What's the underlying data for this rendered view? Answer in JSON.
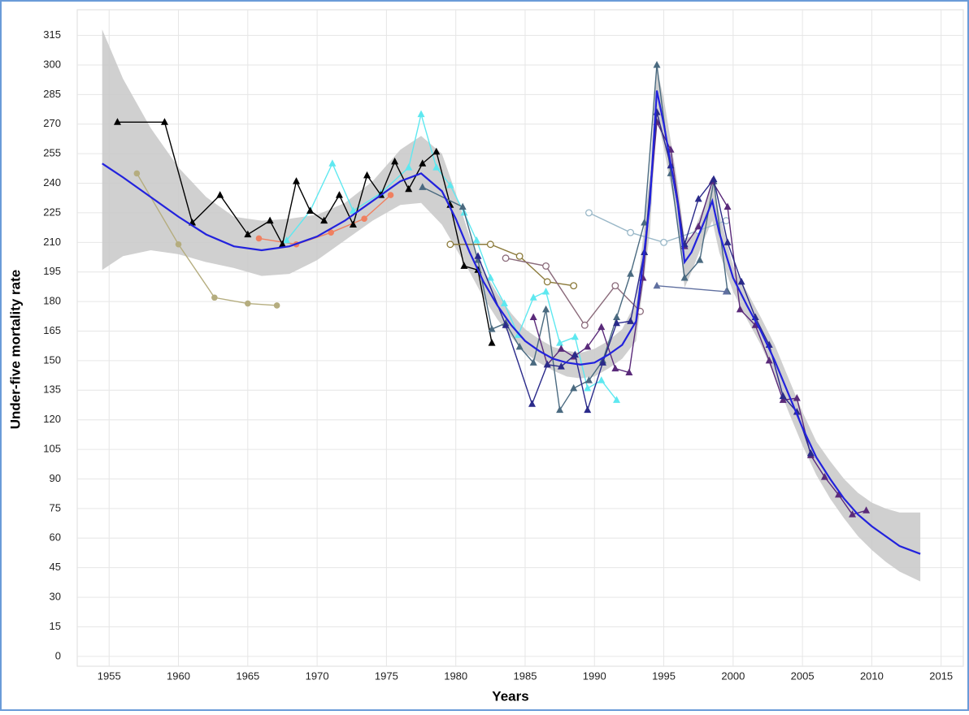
{
  "chart_data": {
    "type": "line",
    "x_label": "Years",
    "y_label": "Under-five mortality rate",
    "xlim": [
      1952.7,
      2016.6
    ],
    "ylim": [
      -5,
      328
    ],
    "xticks": [
      1955,
      1960,
      1965,
      1970,
      1975,
      1980,
      1985,
      1990,
      1995,
      2000,
      2005,
      2010,
      2015
    ],
    "yticks": [
      0,
      15,
      30,
      45,
      60,
      75,
      90,
      105,
      120,
      135,
      150,
      165,
      180,
      195,
      210,
      225,
      240,
      255,
      270,
      285,
      300,
      315
    ],
    "grid": true,
    "band": {
      "color": "#c8c8c8",
      "x": [
        1954.5,
        1956,
        1958,
        1960,
        1962,
        1964,
        1966,
        1968,
        1970,
        1972,
        1974,
        1976,
        1977.5,
        1979,
        1980,
        1981,
        1982,
        1983,
        1984,
        1985,
        1986,
        1987,
        1988,
        1989,
        1990,
        1991,
        1992,
        1993,
        1994,
        1994.5,
        1995,
        1996,
        1996.5,
        1997,
        1998,
        1998.5,
        1999,
        2000,
        2001,
        2002,
        2003,
        2004,
        2005,
        2006,
        2007,
        2008,
        2009,
        2010,
        2011,
        2012,
        2013.5
      ],
      "upper": [
        318,
        293,
        268,
        248,
        233,
        223,
        221,
        222,
        224,
        230,
        241,
        257,
        264,
        255,
        235,
        213,
        196,
        184,
        174,
        166,
        161,
        157,
        155,
        154,
        156,
        160,
        166,
        180,
        245,
        298,
        283,
        240,
        212,
        213,
        230,
        241,
        225,
        198,
        185,
        172,
        158,
        141,
        124,
        109,
        99,
        90,
        83,
        78,
        75,
        73,
        73
      ],
      "lower": [
        196,
        203,
        206,
        204,
        200,
        197,
        193,
        194,
        201,
        211,
        221,
        229,
        230,
        219,
        207,
        195,
        182,
        171,
        162,
        154,
        149,
        145,
        142,
        141,
        142,
        146,
        151,
        160,
        215,
        274,
        258,
        220,
        187,
        195,
        213,
        221,
        205,
        185,
        171,
        158,
        142,
        124,
        107,
        92,
        80,
        70,
        61,
        54,
        48,
        43,
        38
      ]
    },
    "fit": {
      "color": "#2222dd",
      "x": [
        1954.5,
        1956,
        1958,
        1960,
        1962,
        1964,
        1966,
        1968,
        1970,
        1972,
        1974,
        1976,
        1977.5,
        1979,
        1980,
        1981,
        1982,
        1983,
        1984,
        1985,
        1986,
        1987,
        1988,
        1989,
        1990,
        1991,
        1992,
        1993,
        1994,
        1994.5,
        1995,
        1996,
        1996.5,
        1997,
        1998,
        1998.5,
        1999,
        2000,
        2001,
        2002,
        2003,
        2004,
        2005,
        2006,
        2007,
        2008,
        2009,
        2010,
        2011,
        2012,
        2013.5
      ],
      "values": [
        250,
        243,
        233,
        223,
        214,
        208,
        206,
        208,
        213,
        221,
        231,
        241,
        245,
        236,
        222,
        205,
        190,
        178,
        168,
        160,
        155,
        151,
        149,
        148,
        149,
        153,
        158,
        170,
        230,
        287,
        270,
        230,
        200,
        205,
        222,
        231,
        215,
        192,
        178,
        165,
        150,
        133,
        116,
        101,
        90,
        80,
        72,
        66,
        61,
        56,
        52
      ]
    },
    "series": [
      {
        "color": "#b5ad7f",
        "marker": "circle",
        "x": [
          1957,
          1960,
          1962.6,
          1965,
          1967.1
        ],
        "values": [
          245,
          209,
          182,
          179,
          178
        ]
      },
      {
        "color": "#f08060",
        "marker": "circle",
        "x": [
          1965.8,
          1968.5,
          1971,
          1973.4,
          1975.3
        ],
        "values": [
          212,
          209,
          215,
          222,
          234
        ]
      },
      {
        "color": "#5ee8f0",
        "marker": "triangle",
        "x": [
          1967.8,
          1969.5,
          1971.1,
          1972.6,
          1974.6,
          1976.6,
          1977.5,
          1978.6,
          1979.6,
          1980.6,
          1981.5,
          1982.5,
          1983.5,
          1984.5,
          1985.6,
          1986.5,
          1987.5,
          1988.6,
          1989.5,
          1990.5,
          1991.6
        ],
        "values": [
          211,
          226,
          250,
          226,
          235,
          248,
          275,
          248,
          239,
          225,
          211,
          192,
          179,
          163,
          182,
          185,
          159,
          162,
          136,
          140,
          130
        ]
      },
      {
        "color": "#000000",
        "marker": "triangle",
        "x": [
          1955.6,
          1959,
          1961,
          1963,
          1965,
          1966.6,
          1967.5,
          1968.5,
          1969.5,
          1970.5,
          1971.6,
          1972.6,
          1973.6,
          1974.6,
          1975.6,
          1976.6,
          1977.6,
          1978.6,
          1979.6,
          1980.6,
          1981.6,
          1982.6
        ],
        "values": [
          271,
          271,
          220,
          234,
          214,
          221,
          209,
          241,
          226,
          221,
          234,
          219,
          244,
          234,
          251,
          237,
          250,
          256,
          229,
          198,
          196,
          159
        ]
      },
      {
        "color": "#8b7a3a",
        "marker": "open-circle",
        "x": [
          1979.6,
          1982.5,
          1984.6,
          1986.6,
          1988.5
        ],
        "values": [
          209,
          209,
          203,
          190,
          188
        ]
      },
      {
        "color": "#8a6a7a",
        "marker": "open-circle",
        "x": [
          1983.6,
          1986.5,
          1989.3,
          1991.5,
          1993.3
        ],
        "values": [
          202,
          198,
          168,
          188,
          175
        ]
      },
      {
        "color": "#9ab8c8",
        "marker": "open-circle",
        "x": [
          1989.6,
          1992.6,
          1995,
          1997.5,
          1999.5
        ],
        "values": [
          225,
          215,
          210,
          216,
          221
        ]
      },
      {
        "color": "#4a6a80",
        "marker": "triangle",
        "x": [
          1977.6,
          1980.5,
          1981.6,
          1982.6,
          1983.6,
          1984.6,
          1985.6,
          1986.5,
          1987.5,
          1988.5,
          1989.6,
          1990.6,
          1991.6,
          1992.6,
          1993.6,
          1994.5,
          1995.5,
          1996.5,
          1997.6,
          1998.6,
          1999.6
        ],
        "values": [
          238,
          228,
          201,
          166,
          169,
          157,
          149,
          176,
          125,
          136,
          140,
          150,
          172,
          194,
          220,
          300,
          245,
          192,
          201,
          241,
          185
        ]
      },
      {
        "color": "#6070a0",
        "marker": "triangle",
        "x": [
          1994.5,
          1999.5
        ],
        "values": [
          188,
          185
        ]
      },
      {
        "color": "#5a2a7a",
        "marker": "triangle",
        "x": [
          1985.6,
          1986.6,
          1987.6,
          1988.5,
          1989.5,
          1990.5,
          1991.5,
          1992.5,
          1993.5,
          1994.5,
          1995.5,
          1996.5,
          1997.5,
          1998.5,
          1999.6,
          2000.5,
          2001.6,
          2002.6,
          2003.6,
          2004.6,
          2005.6,
          2006.6,
          2007.6,
          2008.6,
          2009.6
        ],
        "values": [
          172,
          148,
          156,
          152,
          157,
          167,
          146,
          144,
          192,
          271,
          257,
          208,
          218,
          241,
          228,
          176,
          168,
          150,
          130,
          131,
          102,
          91,
          82,
          72,
          74
        ]
      },
      {
        "color": "#2a2a8a",
        "marker": "triangle",
        "x": [
          1981.6,
          1983.6,
          1985.5,
          1986.6,
          1987.6,
          1988.6,
          1989.5,
          1990.6,
          1991.6,
          1992.6,
          1993.6,
          1994.5,
          1995.5,
          1996.5,
          1997.5,
          1998.6,
          1999.6,
          2000.6,
          2001.6,
          2002.6,
          2003.6,
          2004.6,
          2005.6
        ],
        "values": [
          203,
          168,
          128,
          148,
          147,
          153,
          125,
          149,
          169,
          170,
          205,
          276,
          249,
          209,
          232,
          242,
          210,
          190,
          172,
          158,
          132,
          124,
          103
        ]
      }
    ]
  }
}
